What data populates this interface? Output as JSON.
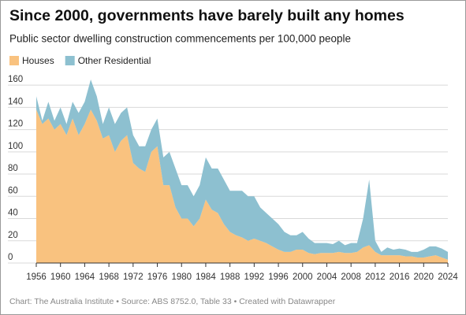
{
  "chart_data": {
    "type": "stacked_area",
    "title": "Since 2000, governments have barely built any homes",
    "subtitle": "Public sector dwelling construction commencements per 100,000 people",
    "source": "Chart: The Australia Institute  • Source: ABS 8752.0, Table 33 • Created with Datawrapper",
    "x": [
      1956,
      1957,
      1958,
      1959,
      1960,
      1961,
      1962,
      1963,
      1964,
      1965,
      1966,
      1967,
      1968,
      1969,
      1970,
      1971,
      1972,
      1973,
      1974,
      1975,
      1976,
      1977,
      1978,
      1979,
      1980,
      1981,
      1982,
      1983,
      1984,
      1985,
      1986,
      1987,
      1988,
      1989,
      1990,
      1991,
      1992,
      1993,
      1994,
      1995,
      1996,
      1997,
      1998,
      1999,
      2000,
      2001,
      2002,
      2003,
      2004,
      2005,
      2006,
      2007,
      2008,
      2009,
      2010,
      2011,
      2012,
      2013,
      2014,
      2015,
      2016,
      2017,
      2018,
      2019,
      2020,
      2021,
      2022,
      2023,
      2024
    ],
    "series": [
      {
        "name": "Houses",
        "color": "#f9c27f",
        "values": [
          138,
          125,
          130,
          120,
          125,
          115,
          130,
          115,
          125,
          138,
          128,
          112,
          115,
          100,
          110,
          115,
          90,
          85,
          82,
          100,
          105,
          70,
          70,
          50,
          40,
          40,
          33,
          40,
          57,
          48,
          45,
          35,
          28,
          25,
          23,
          20,
          22,
          20,
          18,
          15,
          12,
          10,
          10,
          12,
          12,
          9,
          8,
          9,
          9,
          9,
          10,
          9,
          9,
          10,
          14,
          16,
          10,
          7,
          7,
          7,
          7,
          6,
          6,
          5,
          5,
          6,
          7,
          5,
          3
        ]
      },
      {
        "name": "Other Residential",
        "color": "#8dc0d0",
        "values": [
          12,
          3,
          15,
          8,
          15,
          10,
          15,
          20,
          20,
          27,
          22,
          13,
          25,
          25,
          25,
          25,
          25,
          20,
          23,
          20,
          25,
          25,
          30,
          35,
          30,
          30,
          27,
          30,
          38,
          37,
          40,
          40,
          37,
          40,
          42,
          40,
          38,
          30,
          27,
          25,
          23,
          18,
          15,
          13,
          16,
          13,
          10,
          9,
          9,
          8,
          10,
          7,
          9,
          8,
          26,
          59,
          10,
          3,
          7,
          5,
          6,
          6,
          4,
          5,
          7,
          9,
          8,
          8,
          7
        ]
      }
    ],
    "xlim": [
      1956,
      2024
    ],
    "xticks": [
      1956,
      1960,
      1964,
      1968,
      1972,
      1976,
      1980,
      1984,
      1988,
      1992,
      1996,
      2000,
      2004,
      2008,
      2012,
      2016,
      2020,
      2024
    ],
    "ylim": [
      0,
      170
    ],
    "yticks": [
      0,
      20,
      40,
      60,
      80,
      100,
      120,
      140,
      160
    ],
    "grid": true
  }
}
